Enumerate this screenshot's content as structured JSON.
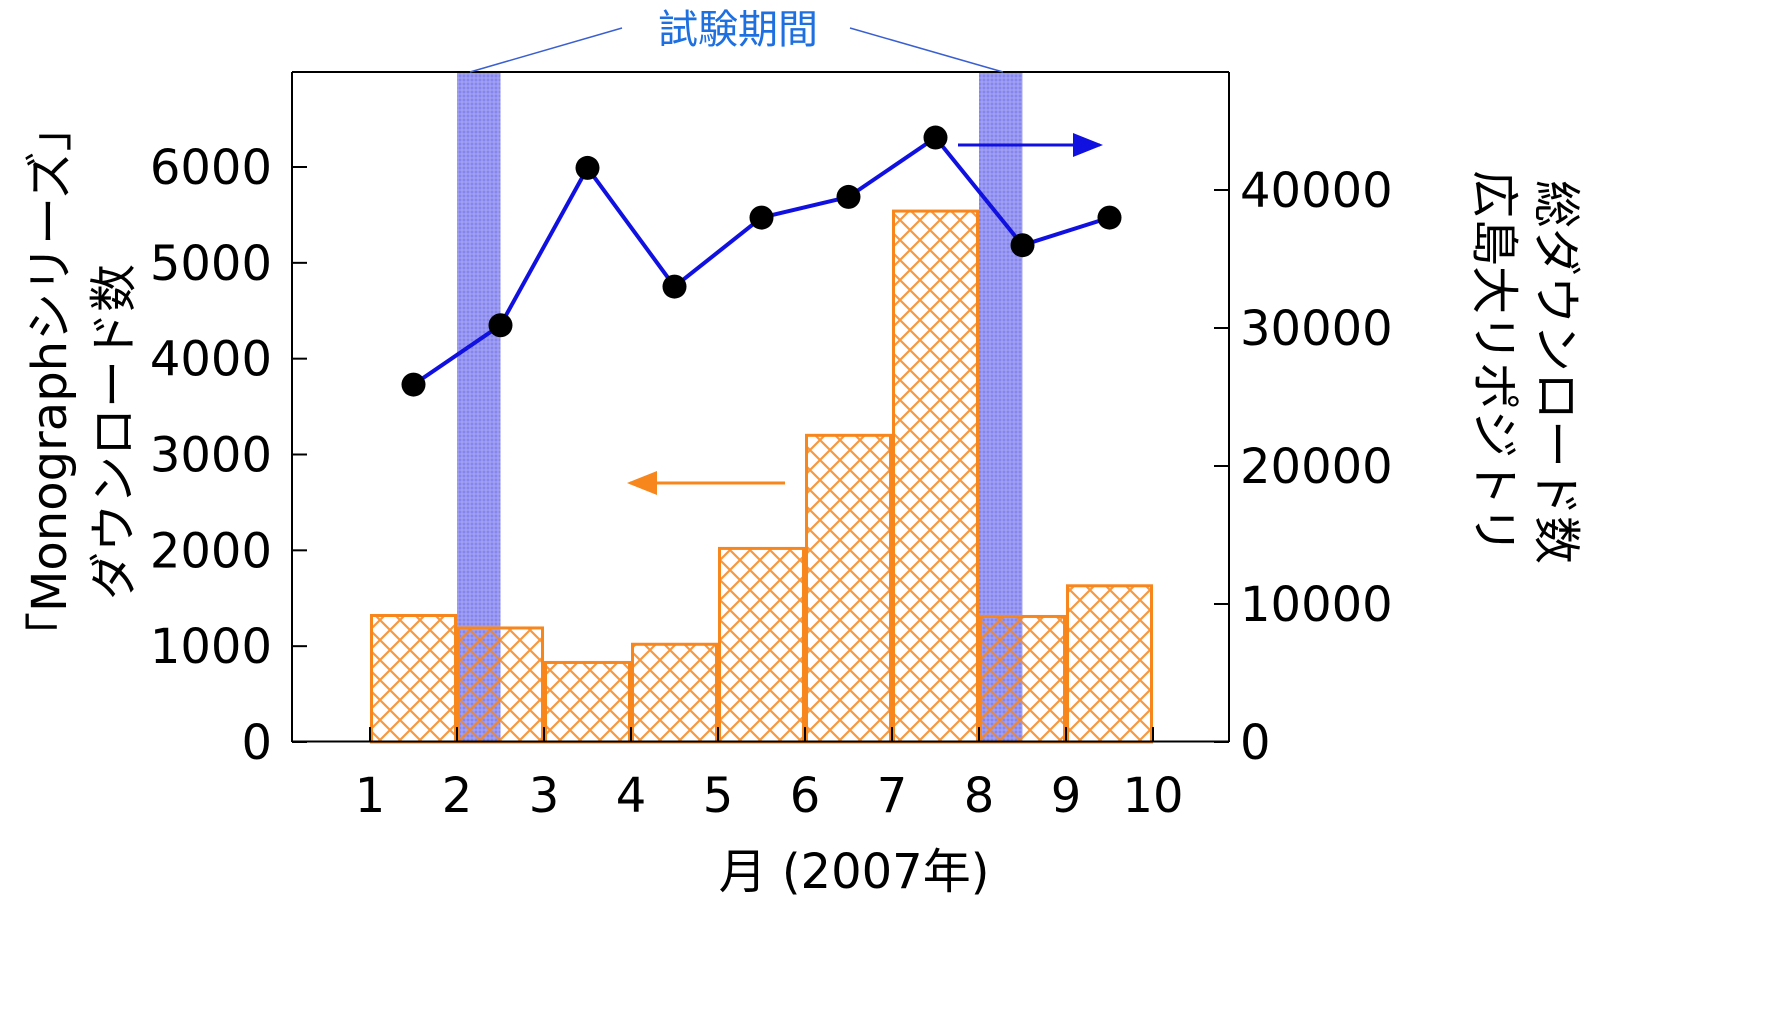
{
  "chart_data": {
    "type": "bar",
    "xlabel": "月 (2007年)",
    "ylabel_left_lines": [
      "「Monographシリーズ」",
      "ダウンロード数"
    ],
    "ylabel_right_lines": [
      "広島大リポジトリ",
      "総ダウンロード数"
    ],
    "xticks": [
      "1",
      "2",
      "3",
      "4",
      "5",
      "6",
      "7",
      "8",
      "9",
      "10"
    ],
    "yticks_left": [
      "0",
      "1000",
      "2000",
      "3000",
      "4000",
      "5000",
      "6000"
    ],
    "yticks_right": [
      "0",
      "10000",
      "20000",
      "30000",
      "40000"
    ],
    "xlim": [
      0.2,
      11
    ],
    "ylim_left": [
      0,
      7000
    ],
    "ylim_right": [
      0,
      44250
    ],
    "annotation": "試験期間",
    "test_periods": [
      [
        2,
        2.5
      ],
      [
        8,
        8.5
      ]
    ],
    "series": [
      {
        "axis": "left",
        "kind": "bar",
        "color": "#F7861C",
        "categories": [
          "1",
          "2",
          "3",
          "4",
          "5",
          "6",
          "7",
          "8",
          "9"
        ],
        "values": [
          1320,
          1190,
          830,
          1020,
          2020,
          3200,
          5540,
          1310,
          1630
        ]
      },
      {
        "axis": "right",
        "kind": "line",
        "color": "#1010E0",
        "x": [
          1.5,
          2.5,
          3.5,
          4.5,
          5.5,
          6.5,
          7.5,
          8.5,
          9.5
        ],
        "values": [
          25900,
          30200,
          41600,
          33000,
          38000,
          39500,
          43800,
          36000,
          38000
        ]
      }
    ],
    "colors": {
      "bar": "#F7861C",
      "line": "#1010E0",
      "marker": "#000000",
      "test_band": "#7B7BEA",
      "annotation_text": "#1E6FE0",
      "leader_line": "#3A5FD0"
    }
  }
}
